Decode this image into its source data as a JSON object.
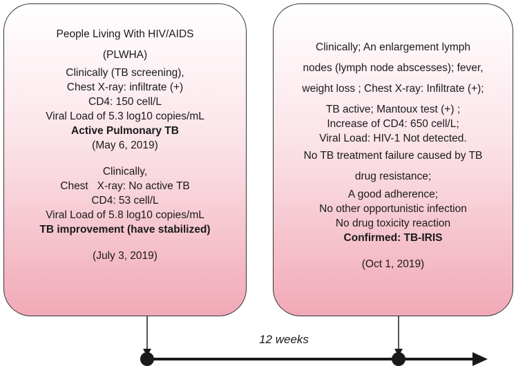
{
  "left_box": {
    "lines": [
      "People Living With HIV/AIDS",
      "(PLWHA)",
      "Clinically (TB screening),",
      "Chest X-ray: infiltrate (+)",
      "CD4: 150 cell/L",
      "Viral Load of 5.3 log10 copies/mL",
      "Active Pulmonary TB",
      "(May 6, 2019)",
      "Clinically,",
      "Chest   X-ray: No active TB",
      "CD4: 53 cell/L",
      "Viral Load of 5.8 log10 copies/mL",
      "TB improvement (have stabilized)",
      "(July 3, 2019)"
    ]
  },
  "right_box": {
    "lines": [
      "Clinically; An enlargement lymph",
      "nodes (lymph node abscesses); fever,",
      "weight loss ; Chest X-ray: Infiltrate (+);",
      "TB active; Mantoux test (+) ;",
      "Increase of CD4: 650 cell/L;",
      "Viral Load: HIV-1 Not detected.",
      "No TB treatment failure caused by TB",
      "drug resistance;",
      "A good adherence;",
      "No other opportunistic infection",
      "No drug toxicity reaction",
      "Confirmed: TB-IRIS",
      "(Oct 1, 2019)"
    ]
  },
  "timeline": {
    "interval_label": "12 weeks",
    "colors": {
      "line": "#1a1a1a",
      "box_fill_bottom": "#f1a9b7"
    }
  }
}
